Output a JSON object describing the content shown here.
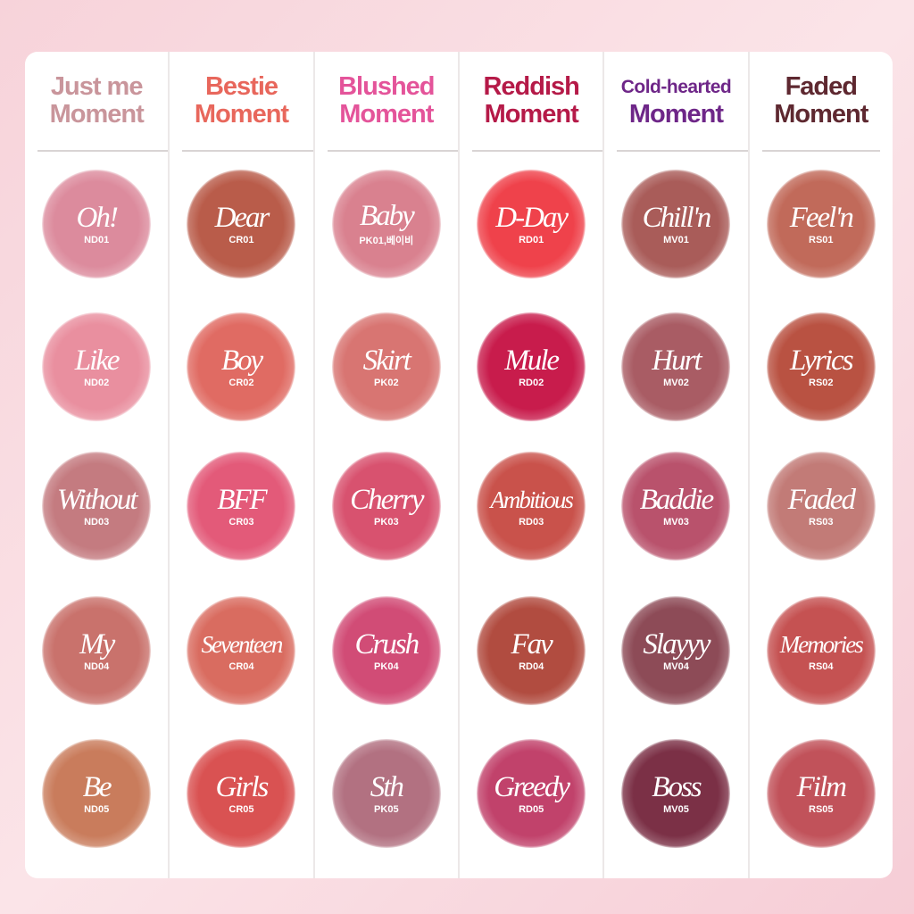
{
  "columns": [
    {
      "title_line1": "Just me",
      "title_line2": "Moment",
      "color": "#c9959b",
      "shades": [
        {
          "name": "Oh!",
          "code": "ND01",
          "color": "#dc8b9d"
        },
        {
          "name": "Like",
          "code": "ND02",
          "color": "#e98f9f"
        },
        {
          "name": "Without",
          "code": "ND03",
          "color": "#c47b80"
        },
        {
          "name": "My",
          "code": "ND04",
          "color": "#c9726c"
        },
        {
          "name": "Be",
          "code": "ND05",
          "color": "#c97c5c"
        }
      ]
    },
    {
      "title_line1": "Bestie",
      "title_line2": "Moment",
      "color": "#e8675c",
      "shades": [
        {
          "name": "Dear",
          "code": "CR01",
          "color": "#b95c4a"
        },
        {
          "name": "Boy",
          "code": "CR02",
          "color": "#e06b63"
        },
        {
          "name": "BFF",
          "code": "CR03",
          "color": "#e35a79"
        },
        {
          "name": "Seventeen",
          "code": "CR04",
          "color": "#d96c60"
        },
        {
          "name": "Girls",
          "code": "CR05",
          "color": "#d95252"
        }
      ]
    },
    {
      "title_line1": "Blushed",
      "title_line2": "Moment",
      "color": "#e4549a",
      "shades": [
        {
          "name": "Baby",
          "code": "PK01,베이비",
          "color": "#d9818f"
        },
        {
          "name": "Skirt",
          "code": "PK02",
          "color": "#d87572"
        },
        {
          "name": "Cherry",
          "code": "PK03",
          "color": "#d8526f"
        },
        {
          "name": "Crush",
          "code": "PK04",
          "color": "#d14c76"
        },
        {
          "name": "Sth",
          "code": "PK05",
          "color": "#b27181"
        }
      ]
    },
    {
      "title_line1": "Reddish",
      "title_line2": "Moment",
      "color": "#b51a48",
      "shades": [
        {
          "name": "D-Day",
          "code": "RD01",
          "color": "#ef424b"
        },
        {
          "name": "Mule",
          "code": "RD02",
          "color": "#c81c4c"
        },
        {
          "name": "Ambitious",
          "code": "RD03",
          "color": "#c9524b"
        },
        {
          "name": "Fav",
          "code": "RD04",
          "color": "#b14c40"
        },
        {
          "name": "Greedy",
          "code": "RD05",
          "color": "#c1426b"
        }
      ]
    },
    {
      "title_line1": "Cold-hearted",
      "title_line2": "Moment",
      "color": "#6e2688",
      "shades": [
        {
          "name": "Chill'n",
          "code": "MV01",
          "color": "#a95c59"
        },
        {
          "name": "Hurt",
          "code": "MV02",
          "color": "#a95c64"
        },
        {
          "name": "Baddie",
          "code": "MV03",
          "color": "#b9526c"
        },
        {
          "name": "Slayyy",
          "code": "MV04",
          "color": "#8d4b57"
        },
        {
          "name": "Boss",
          "code": "MV05",
          "color": "#7b3046"
        }
      ]
    },
    {
      "title_line1": "Faded",
      "title_line2": "Moment",
      "color": "#5e2830",
      "shades": [
        {
          "name": "Feel'n",
          "code": "RS01",
          "color": "#c16a5a"
        },
        {
          "name": "Lyrics",
          "code": "RS02",
          "color": "#b95242"
        },
        {
          "name": "Faded",
          "code": "RS03",
          "color": "#c27b77"
        },
        {
          "name": "Memories",
          "code": "RS04",
          "color": "#c55252"
        },
        {
          "name": "Film",
          "code": "RS05",
          "color": "#c1525a"
        }
      ]
    }
  ]
}
